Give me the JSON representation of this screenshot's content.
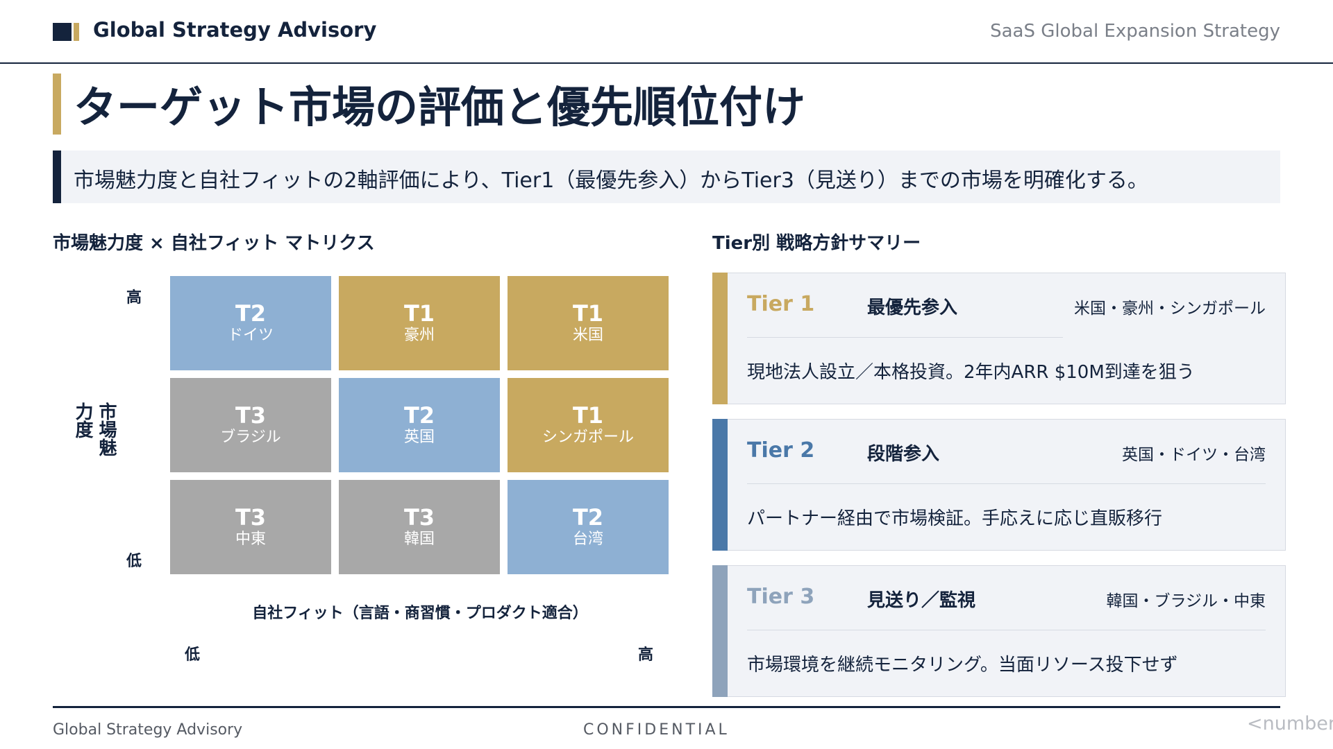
{
  "header": {
    "brand": "Global Strategy Advisory",
    "deck_title": "SaaS Global Expansion Strategy"
  },
  "page_title": "ターゲット市場の評価と優先順位付け",
  "lead": "市場魅力度と自社フィットの2軸評価により、Tier1（最優先参入）からTier3（見送り）までの市場を明確化する。",
  "matrix": {
    "heading": "市場魅力度 × 自社フィット マトリクス",
    "y_axis_label": "市場魅力度",
    "y_high": "高",
    "y_low": "低",
    "x_axis_label": "自社フィット（言語・商習慣・プロダクト適合）",
    "x_low": "低",
    "x_high": "高",
    "cells": [
      {
        "tier": "T2",
        "country": "ドイツ"
      },
      {
        "tier": "T1",
        "country": "豪州"
      },
      {
        "tier": "T1",
        "country": "米国"
      },
      {
        "tier": "T3",
        "country": "ブラジル"
      },
      {
        "tier": "T2",
        "country": "英国"
      },
      {
        "tier": "T1",
        "country": "シンガポール"
      },
      {
        "tier": "T3",
        "country": "中東"
      },
      {
        "tier": "T3",
        "country": "韓国"
      },
      {
        "tier": "T2",
        "country": "台湾"
      }
    ]
  },
  "summary": {
    "heading": "Tier別 戦略方針サマリー",
    "tiers": [
      {
        "name": "Tier 1",
        "strategy": "最優先参入",
        "markets": "米国・豪州・シンガポール",
        "description": "現地法人設立／本格投資。2年内ARR $10M到達を狙う"
      },
      {
        "name": "Tier 2",
        "strategy": "段階参入",
        "markets": "英国・ドイツ・台湾",
        "description": "パートナー経由で市場検証。手応えに応じ直販移行"
      },
      {
        "name": "Tier 3",
        "strategy": "見送り／監視",
        "markets": "韓国・ブラジル・中東",
        "description": "市場環境を継続モニタリング。当面リソース投下せず"
      }
    ]
  },
  "colors": {
    "navy": "#14233c",
    "gold": "#c8a960",
    "tier1": "#c8a960",
    "tier2": "#8eb0d3",
    "tier3": "#a8a8a8",
    "tier2_stripe": "#4a78a8",
    "tier3_stripe": "#8ea3bb"
  },
  "footer": {
    "brand": "Global Strategy Advisory",
    "confidential": "CONFIDENTIAL",
    "page_number": "<number>"
  }
}
